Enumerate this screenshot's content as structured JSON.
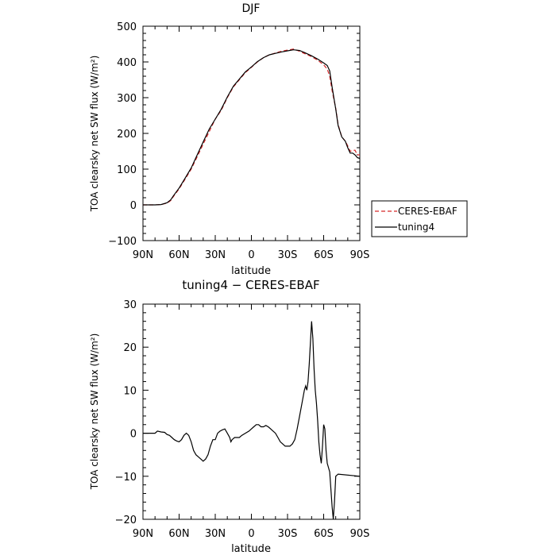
{
  "chart_data": [
    {
      "type": "line",
      "title": "DJF",
      "xlabel": "latitude",
      "ylabel": "TOA clearsky net SW flux (W/m²)",
      "xlim": [
        90,
        -90
      ],
      "ylim": [
        -100,
        500
      ],
      "xticks": [
        90,
        60,
        30,
        0,
        -30,
        -60,
        -90
      ],
      "xtick_labels": [
        "90N",
        "60N",
        "30N",
        "0",
        "30S",
        "60S",
        "90S"
      ],
      "yticks": [
        -100,
        0,
        100,
        200,
        300,
        400,
        500
      ],
      "ytick_labels": [
        "−100",
        "0",
        "100",
        "200",
        "300",
        "400",
        "500"
      ],
      "legend_position": "right, outside plot",
      "series": [
        {
          "name": "CERES-EBAF",
          "color": "#d62728",
          "dash": "dashed",
          "points": [
            [
              90,
              0
            ],
            [
              80,
              0
            ],
            [
              75,
              1
            ],
            [
              70,
              5
            ],
            [
              67,
              12
            ],
            [
              65,
              22
            ],
            [
              60,
              45
            ],
            [
              55,
              72
            ],
            [
              50,
              100
            ],
            [
              45,
              135
            ],
            [
              40,
              170
            ],
            [
              35,
              205
            ],
            [
              30,
              240
            ],
            [
              25,
              265
            ],
            [
              20,
              300
            ],
            [
              15,
              330
            ],
            [
              10,
              350
            ],
            [
              5,
              370
            ],
            [
              0,
              385
            ],
            [
              -5,
              400
            ],
            [
              -10,
              412
            ],
            [
              -15,
              420
            ],
            [
              -20,
              425
            ],
            [
              -25,
              430
            ],
            [
              -30,
              433
            ],
            [
              -35,
              436
            ],
            [
              -40,
              430
            ],
            [
              -45,
              422
            ],
            [
              -50,
              415
            ],
            [
              -55,
              405
            ],
            [
              -60,
              392
            ],
            [
              -63,
              380
            ],
            [
              -65,
              360
            ],
            [
              -67,
              320
            ],
            [
              -70,
              270
            ],
            [
              -72,
              225
            ],
            [
              -75,
              190
            ],
            [
              -78,
              178
            ],
            [
              -80,
              165
            ],
            [
              -82,
              150
            ],
            [
              -84,
              152
            ],
            [
              -86,
              153
            ],
            [
              -88,
              140
            ],
            [
              -90,
              140
            ]
          ]
        },
        {
          "name": "tuning4",
          "color": "#000000",
          "dash": "solid",
          "points": [
            [
              90,
              0
            ],
            [
              80,
              0
            ],
            [
              75,
              1
            ],
            [
              70,
              6
            ],
            [
              67,
              14
            ],
            [
              65,
              24
            ],
            [
              60,
              47
            ],
            [
              55,
              75
            ],
            [
              50,
              103
            ],
            [
              45,
              140
            ],
            [
              40,
              176
            ],
            [
              35,
              212
            ],
            [
              30,
              240
            ],
            [
              25,
              268
            ],
            [
              20,
              302
            ],
            [
              15,
              332
            ],
            [
              10,
              352
            ],
            [
              5,
              372
            ],
            [
              0,
              386
            ],
            [
              -5,
              401
            ],
            [
              -10,
              412
            ],
            [
              -15,
              420
            ],
            [
              -20,
              424
            ],
            [
              -25,
              428
            ],
            [
              -30,
              431
            ],
            [
              -35,
              434
            ],
            [
              -40,
              432
            ],
            [
              -45,
              425
            ],
            [
              -50,
              417
            ],
            [
              -55,
              408
            ],
            [
              -60,
              397
            ],
            [
              -63,
              390
            ],
            [
              -65,
              375
            ],
            [
              -67,
              330
            ],
            [
              -70,
              268
            ],
            [
              -72,
              222
            ],
            [
              -75,
              190
            ],
            [
              -78,
              178
            ],
            [
              -80,
              160
            ],
            [
              -82,
              145
            ],
            [
              -84,
              145
            ],
            [
              -86,
              140
            ],
            [
              -88,
              132
            ],
            [
              -90,
              130
            ]
          ]
        }
      ]
    },
    {
      "type": "line",
      "title": "tuning4 − CERES-EBAF",
      "xlabel": "latitude",
      "ylabel": "TOA clearsky net SW flux (W/m²)",
      "xlim": [
        90,
        -90
      ],
      "ylim": [
        -20,
        30
      ],
      "xticks": [
        90,
        60,
        30,
        0,
        -30,
        -60,
        -90
      ],
      "xtick_labels": [
        "90N",
        "60N",
        "30N",
        "0",
        "30S",
        "60S",
        "90S"
      ],
      "yticks": [
        -20,
        -10,
        0,
        10,
        20,
        30
      ],
      "ytick_labels": [
        "−20",
        "−10",
        "0",
        "10",
        "20",
        "30"
      ],
      "series": [
        {
          "color": "#000000",
          "dash": "solid",
          "points": [
            [
              90,
              0
            ],
            [
              80,
              0
            ],
            [
              78,
              0.5
            ],
            [
              75,
              0.3
            ],
            [
              72,
              0.2
            ],
            [
              70,
              -0.3
            ],
            [
              68,
              -0.5
            ],
            [
              66,
              -1
            ],
            [
              64,
              -1.5
            ],
            [
              62,
              -1.8
            ],
            [
              60,
              -2
            ],
            [
              58,
              -1.5
            ],
            [
              56,
              -0.5
            ],
            [
              54,
              0
            ],
            [
              52,
              -0.5
            ],
            [
              50,
              -2
            ],
            [
              48,
              -4
            ],
            [
              46,
              -5
            ],
            [
              44,
              -5.5
            ],
            [
              42,
              -6
            ],
            [
              40,
              -6.5
            ],
            [
              38,
              -6
            ],
            [
              36,
              -5
            ],
            [
              34,
              -3
            ],
            [
              32,
              -1.5
            ],
            [
              30,
              -1.5
            ],
            [
              28,
              0
            ],
            [
              26,
              0.5
            ],
            [
              24,
              0.8
            ],
            [
              22,
              1
            ],
            [
              20,
              0
            ],
            [
              18,
              -1
            ],
            [
              17,
              -2
            ],
            [
              16,
              -1.5
            ],
            [
              14,
              -1
            ],
            [
              12,
              -1
            ],
            [
              10,
              -1
            ],
            [
              8,
              -0.5
            ],
            [
              5,
              0
            ],
            [
              2,
              0.5
            ],
            [
              0,
              1
            ],
            [
              -2,
              1.5
            ],
            [
              -4,
              2
            ],
            [
              -6,
              2
            ],
            [
              -8,
              1.5
            ],
            [
              -10,
              1.5
            ],
            [
              -12,
              1.8
            ],
            [
              -14,
              1.5
            ],
            [
              -16,
              1
            ],
            [
              -18,
              0.5
            ],
            [
              -20,
              0
            ],
            [
              -22,
              -1
            ],
            [
              -24,
              -2
            ],
            [
              -26,
              -2.5
            ],
            [
              -28,
              -3
            ],
            [
              -30,
              -3
            ],
            [
              -32,
              -3
            ],
            [
              -34,
              -2.5
            ],
            [
              -36,
              -1.5
            ],
            [
              -38,
              1
            ],
            [
              -40,
              4
            ],
            [
              -42,
              7
            ],
            [
              -44,
              10
            ],
            [
              -45,
              11
            ],
            [
              -46,
              10
            ],
            [
              -47,
              12
            ],
            [
              -48,
              16
            ],
            [
              -49,
              21
            ],
            [
              -50,
              26
            ],
            [
              -51,
              22
            ],
            [
              -52,
              15
            ],
            [
              -53,
              10
            ],
            [
              -54,
              7
            ],
            [
              -55,
              3
            ],
            [
              -56,
              -2
            ],
            [
              -57,
              -5
            ],
            [
              -58,
              -7
            ],
            [
              -59,
              -3
            ],
            [
              -60,
              2
            ],
            [
              -61,
              1
            ],
            [
              -62,
              -4
            ],
            [
              -63,
              -7
            ],
            [
              -64,
              -8
            ],
            [
              -65,
              -9
            ],
            [
              -66,
              -13
            ],
            [
              -67,
              -17
            ],
            [
              -68,
              -20
            ],
            [
              -69,
              -16
            ],
            [
              -70,
              -10
            ],
            [
              -72,
              -9.5
            ],
            [
              -90,
              -10
            ]
          ]
        }
      ]
    }
  ]
}
